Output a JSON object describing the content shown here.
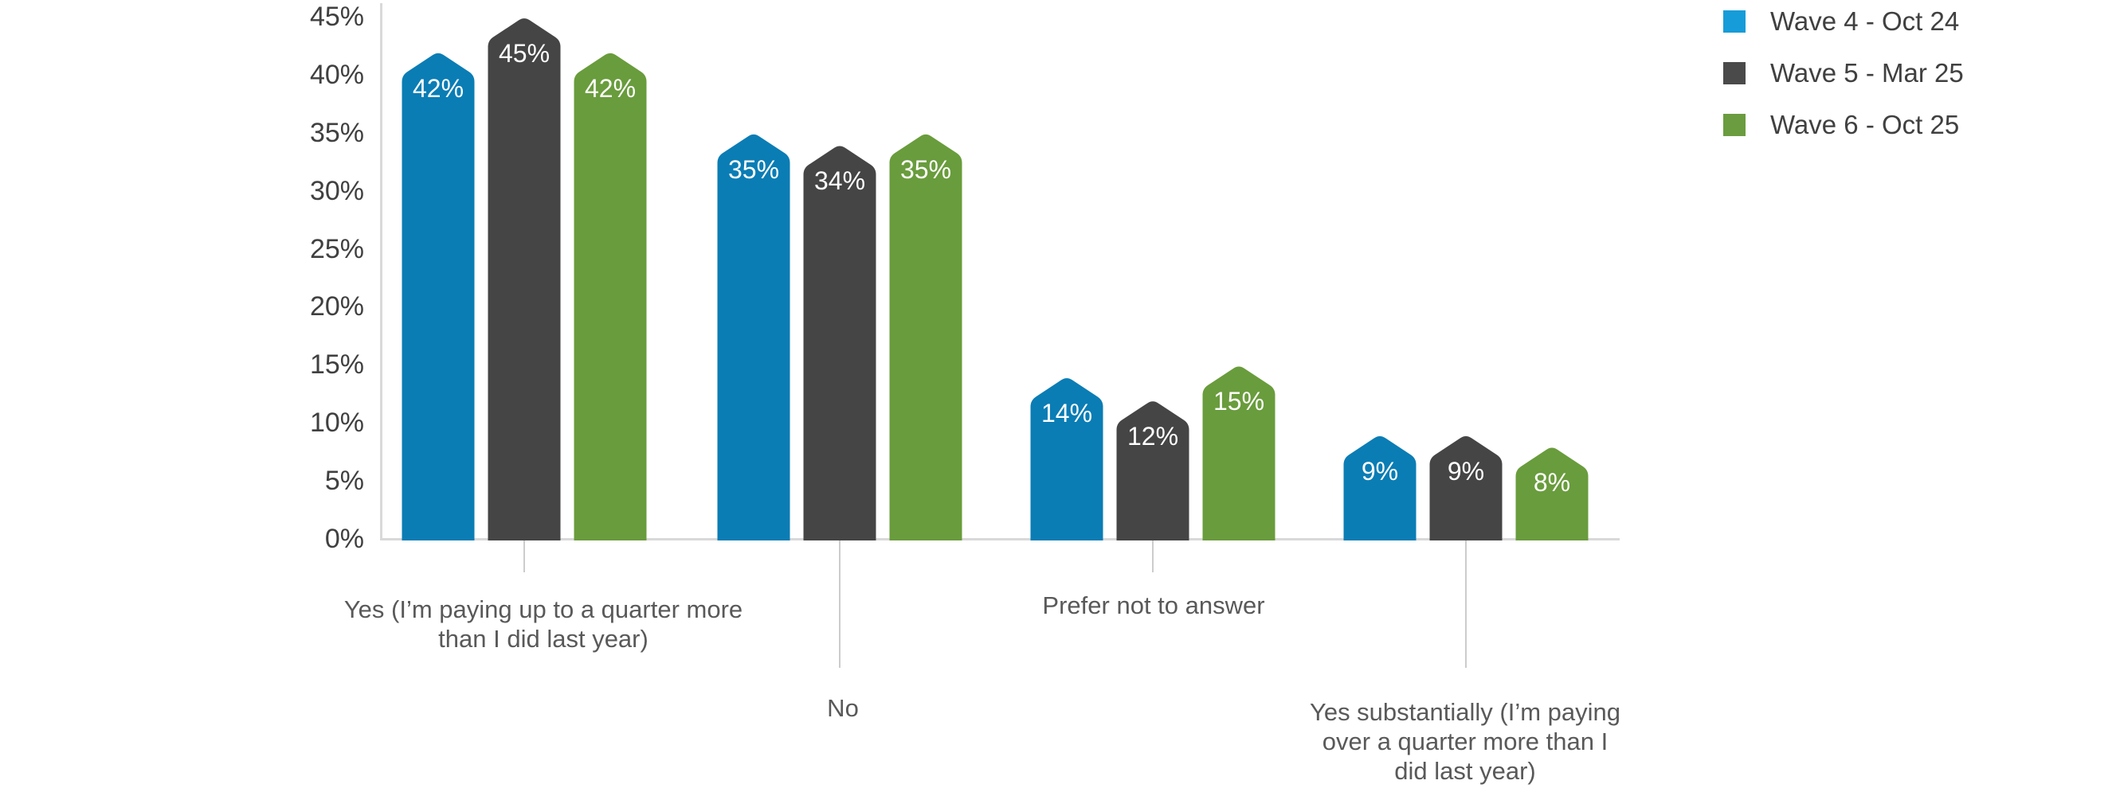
{
  "chart_data": {
    "type": "bar",
    "title": "",
    "bar_shape": "pointed-pentagon",
    "grid": false,
    "categories": [
      "Yes (I’m paying up to a quarter more\nthan I did last year)",
      "No",
      "Prefer not to answer",
      "Yes substantially (I’m paying\nover a quarter more than I\ndid last year)"
    ],
    "series": [
      {
        "name": "Wave 4 - Oct 24",
        "color": "#0a7db5",
        "legend_color": "#169cd8",
        "values": [
          42,
          35,
          14,
          9
        ],
        "value_labels": [
          "42%",
          "35%",
          "14%",
          "9%"
        ]
      },
      {
        "name": "Wave 5 - Mar 25",
        "color": "#454545",
        "legend_color": "#4a4a4a",
        "values": [
          45,
          34,
          12,
          9
        ],
        "value_labels": [
          "45%",
          "34%",
          "12%",
          "9%"
        ]
      },
      {
        "name": "Wave 6 - Oct 25",
        "color": "#699c3c",
        "legend_color": "#6b9c3f",
        "values": [
          42,
          35,
          15,
          8
        ],
        "value_labels": [
          "42%",
          "35%",
          "15%",
          "8%"
        ]
      }
    ],
    "y_axis": {
      "min": 0,
      "max": 45,
      "step": 5,
      "tick_values": [
        45,
        40,
        35,
        30,
        25,
        20,
        15,
        10,
        5,
        0
      ],
      "tick_labels": [
        "45%",
        "40%",
        "35%",
        "30%",
        "25%",
        "20%",
        "15%",
        "10%",
        "5%",
        "0%"
      ]
    },
    "legend": {
      "position": "top-right",
      "items": [
        "Wave 4 - Oct 24",
        "Wave 5 - Mar 25",
        "Wave 6 - Oct 25"
      ]
    },
    "data_labels": "inside top, white",
    "colors": {
      "axis_line": "#d9d9d9",
      "leader_line": "#cccccc",
      "axis_label_text": "#404040",
      "category_label_text": "#595959",
      "legend_text": "#404040"
    }
  }
}
